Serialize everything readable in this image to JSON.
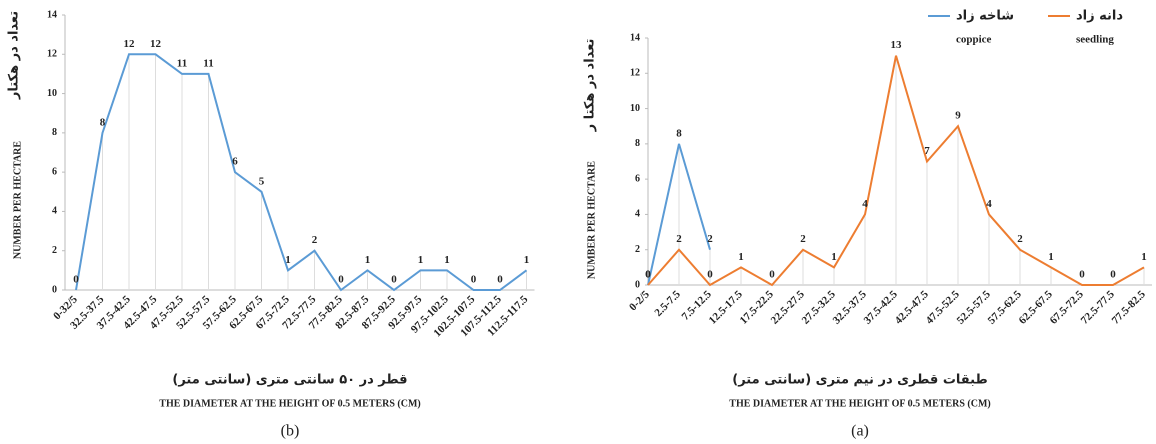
{
  "charts": [
    {
      "type": "line",
      "caption": "(b)",
      "ylabel": "NUMBER PER HECTARE",
      "ylabel_fa": "تعداد در هکتار",
      "xlabel_fa": "قطر در ۵۰ سانتی متری (سانتی متر)",
      "xlabel": "THE DIAMETER AT THE HEIGHT OF 0.5 METERS (CM)",
      "categories": [
        "0-32/5",
        "32.5-37.5",
        "37.5-42.5",
        "42.5-47.5",
        "47.5-52.5",
        "52.5-57.5",
        "57.5-62.5",
        "62.5-67.5",
        "67.5-72.5",
        "72.5-77.5",
        "77.5-82.5",
        "82.5-87.5",
        "87.5-92.5",
        "92.5-97.5",
        "97.5-102.5",
        "102.5-107.5",
        "107.5-112.5",
        "112.5-117.5"
      ],
      "series": [
        {
          "color": "#5b9bd5",
          "values": [
            0,
            8,
            12,
            12,
            11,
            11,
            6,
            5,
            1,
            2,
            0,
            1,
            0,
            1,
            1,
            0,
            0,
            1
          ]
        }
      ],
      "ylim": [
        0,
        14
      ],
      "yticks": [
        0,
        2,
        4,
        6,
        8,
        10,
        12,
        14
      ]
    },
    {
      "type": "line",
      "caption": "(a)",
      "ylabel": "NUMBER PER HECTARE",
      "ylabel_fa": "تعداد در هکتا ر",
      "xlabel_fa": "طبقات قطری در نیم متری (سانتی متر)",
      "xlabel": "THE DIAMETER AT THE HEIGHT OF 0.5 METERS (CM)",
      "categories": [
        "0-2/5",
        "2.5-7.5",
        "7.5-12.5",
        "12.5-17.5",
        "17.5-22.5",
        "22.5-27.5",
        "27.5-32.5",
        "32.5-37.5",
        "37.5-42.5",
        "42.5-47.5",
        "47.5-52.5",
        "52.5-57.5",
        "57.5-62.5",
        "62.5-67.5",
        "67.5-72.5",
        "72.5-77.5",
        "77.5-82.5"
      ],
      "series": [
        {
          "name": "شاخه زاد",
          "name_en": "coppice",
          "color": "#5b9bd5",
          "values": [
            0,
            8,
            2,
            null,
            null,
            null,
            null,
            null,
            null,
            null,
            null,
            null,
            null,
            null,
            null,
            null,
            null
          ]
        },
        {
          "name": "دانه زاد",
          "name_en": "seedling",
          "color": "#ed7d31",
          "values": [
            0,
            2,
            0,
            1,
            0,
            2,
            1,
            4,
            13,
            7,
            9,
            4,
            2,
            1,
            0,
            0,
            1
          ]
        }
      ],
      "ylim": [
        0,
        14
      ],
      "yticks": [
        0,
        2,
        4,
        6,
        8,
        10,
        12,
        14
      ]
    }
  ]
}
